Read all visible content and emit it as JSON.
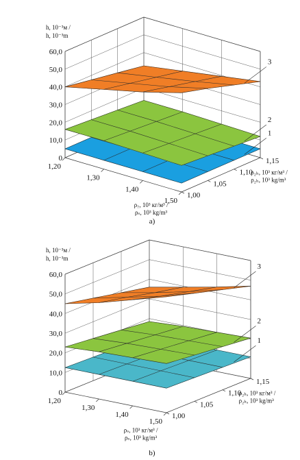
{
  "colors": {
    "surface1_a": "#1a9fe0",
    "surface1_b": "#4ab7c9",
    "surface2": "#8bc53f",
    "surface3": "#f07e26"
  },
  "chart_data": [
    {
      "type": "surface3d",
      "caption": "a)",
      "zlabel_line1": "h, 10⁻³м /",
      "zlabel_line2": "h, 10⁻³m",
      "xlabel_line1": "ρ₇, 10³ кг/м³ /",
      "xlabel_line2": "ρₛ, 10³ kg/m³",
      "ylabel_line1": "ρ₂ₕ, 10³ кг/м³ /",
      "ylabel_line2": "ρ₂ₕ, 10³ kg/m³",
      "x_ticks": [
        "1,20",
        "1,30",
        "1,40",
        "1,50"
      ],
      "y_ticks": [
        "1,00",
        "1,05",
        "1,10",
        "1,15"
      ],
      "z_ticks": [
        "0",
        "10,0",
        "20,0",
        "30,0",
        "40,0",
        "50,0",
        "60,0"
      ],
      "x": [
        1.2,
        1.3,
        1.4,
        1.5
      ],
      "y": [
        1.0,
        1.05,
        1.1,
        1.15
      ],
      "zlim": [
        0,
        60
      ],
      "series": [
        {
          "name": "1",
          "z": [
            [
              5,
              5,
              5,
              5
            ],
            [
              5,
              5,
              5,
              5
            ],
            [
              5,
              5,
              5,
              5
            ],
            [
              5,
              5,
              5,
              5
            ]
          ]
        },
        {
          "name": "2",
          "z": [
            [
              16,
              15,
              14,
              13
            ],
            [
              16,
              15,
              14,
              13
            ],
            [
              15.5,
              14.5,
              13.5,
              12.5
            ],
            [
              15,
              14,
              13,
              12
            ]
          ]
        },
        {
          "name": "3",
          "z": [
            [
              40,
              37.5,
              35,
              32.5
            ],
            [
              45,
              42,
              39,
              36
            ],
            [
              50,
              46.5,
              43,
              39.5
            ],
            [
              56,
              52,
              47.5,
              43
            ]
          ]
        }
      ]
    },
    {
      "type": "surface3d",
      "caption": "b)",
      "zlabel_line1": "h, 10⁻³м /",
      "zlabel_line2": "h, 10⁻³m",
      "xlabel_line1": "ρₛ, 10³ кг/м³ /",
      "xlabel_line2": "ρₛ, 10³ kg/m³",
      "ylabel_line1": "ρ₂ₕ, 10³ кг/м³ /",
      "ylabel_line2": "ρ₂ₕ, 10³ kg/m³",
      "x_ticks": [
        "1,20",
        "1,30",
        "1,40",
        "1,50"
      ],
      "y_ticks": [
        "1,00",
        "1,05",
        "1,10",
        "1,15"
      ],
      "z_ticks": [
        "0",
        "10,0",
        "20,0",
        "30,0",
        "40,0",
        "50,0",
        "60,0"
      ],
      "x": [
        1.2,
        1.3,
        1.4,
        1.5
      ],
      "y": [
        1.0,
        1.05,
        1.1,
        1.15
      ],
      "zlim": [
        0,
        60
      ],
      "series": [
        {
          "name": "1",
          "z": [
            [
              12.5,
              12,
              11.5,
              11
            ],
            [
              12.5,
              12,
              11.5,
              11
            ],
            [
              12.5,
              12,
              11.5,
              11
            ],
            [
              12.5,
              12,
              11.5,
              11
            ]
          ]
        },
        {
          "name": "2",
          "z": [
            [
              23,
              21.5,
              20,
              18.5
            ],
            [
              24,
              22.5,
              21,
              19.5
            ],
            [
              24.5,
              23,
              21.5,
              20
            ],
            [
              25,
              23.5,
              22,
              20.5
            ]
          ]
        },
        {
          "name": "3",
          "z": [
            [
              45,
              42,
              39,
              36
            ],
            [
              49,
              46,
              42.5,
              39.5
            ],
            [
              54,
              50,
              46.5,
              43
            ],
            [
              59,
              55,
              51,
              47
            ]
          ]
        }
      ]
    }
  ]
}
